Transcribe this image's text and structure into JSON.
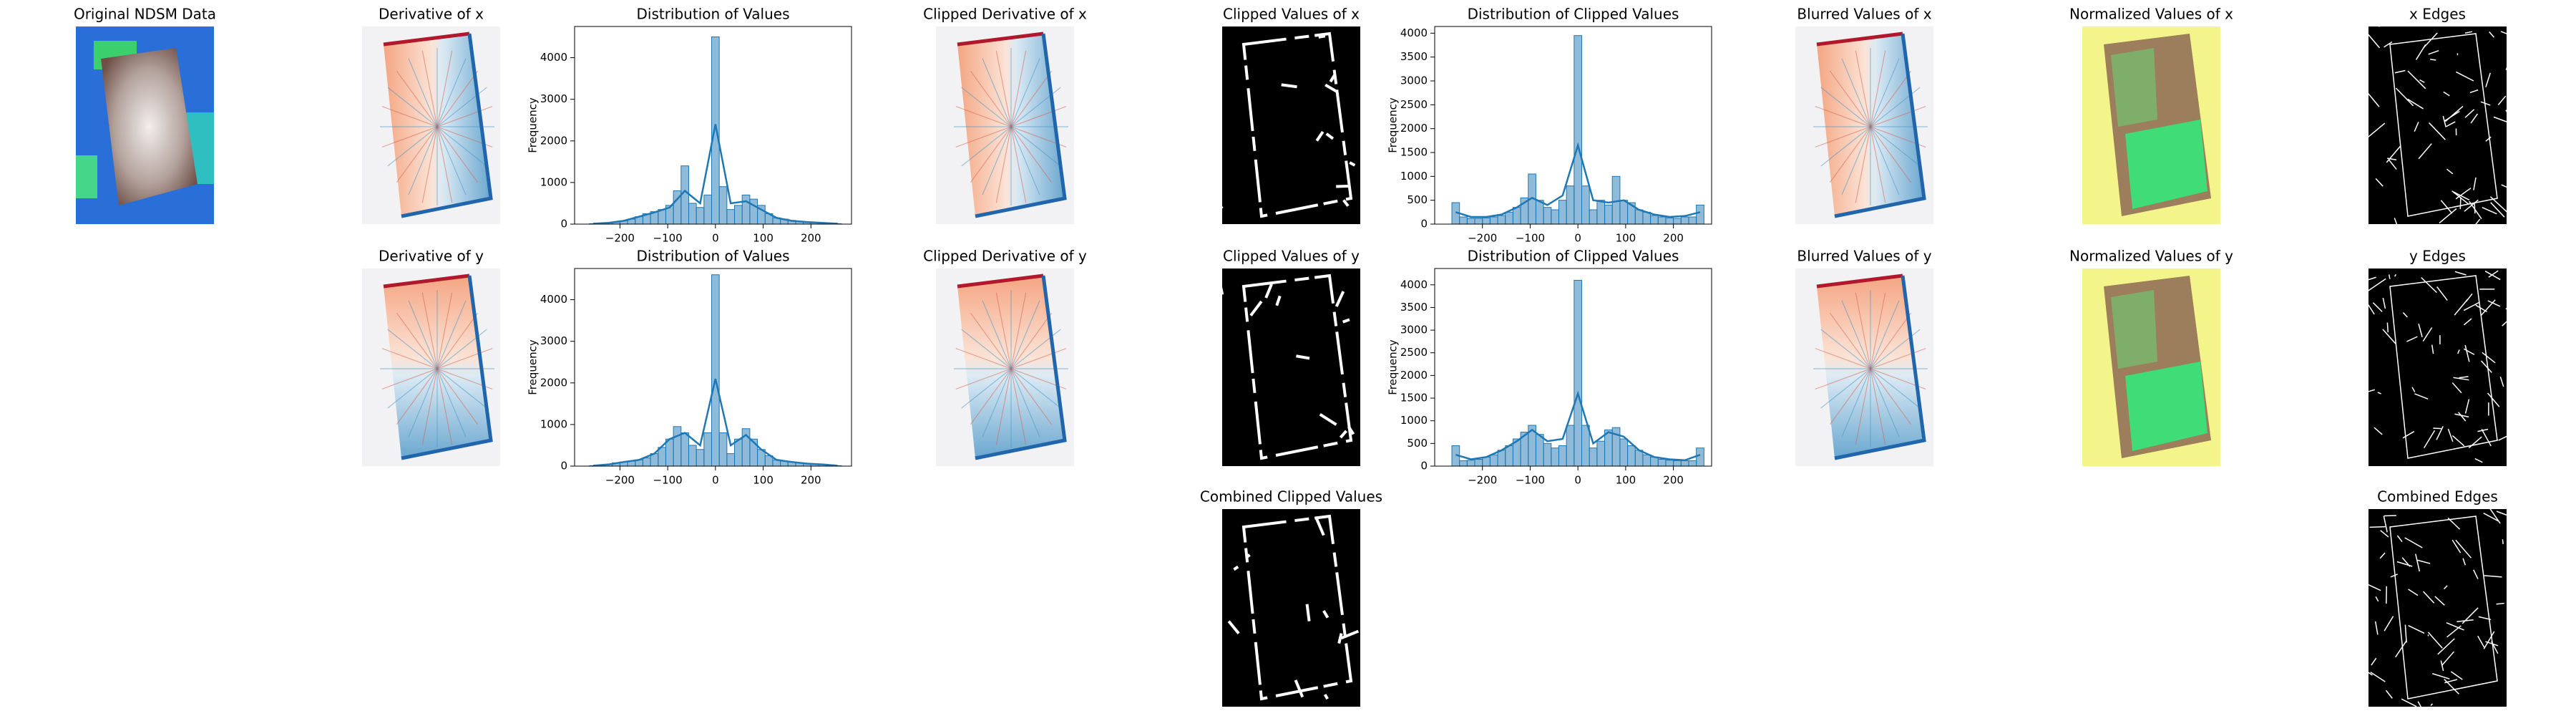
{
  "chart_data": [
    {
      "type": "image",
      "title": "Original NDSM Data"
    },
    {
      "type": "image",
      "title": "Derivative of x"
    },
    {
      "type": "histogram",
      "title": "Distribution of Values",
      "ylabel": "Frequency",
      "color": "#1f77b4",
      "bins": [
        -264,
        -248,
        -232,
        -216,
        -200,
        -184,
        -168,
        -152,
        -136,
        -120,
        -104,
        -88,
        -72,
        -56,
        -40,
        -24,
        -8,
        8,
        24,
        40,
        56,
        72,
        88,
        104,
        120,
        136,
        152,
        168,
        184,
        200,
        216,
        232,
        248,
        264
      ],
      "counts": [
        10,
        20,
        30,
        50,
        80,
        120,
        180,
        250,
        300,
        350,
        450,
        800,
        1400,
        500,
        400,
        700,
        4500,
        900,
        350,
        450,
        700,
        600,
        450,
        250,
        150,
        120,
        90,
        70,
        50,
        40,
        30,
        20,
        10
      ],
      "kde": {
        "x": [
          -256,
          -224,
          -192,
          -160,
          -128,
          -96,
          -64,
          -32,
          0,
          32,
          64,
          96,
          128,
          160,
          192,
          224,
          256
        ],
        "values": [
          10,
          30,
          80,
          180,
          280,
          400,
          800,
          500,
          2400,
          500,
          550,
          350,
          150,
          80,
          50,
          30,
          10
        ]
      },
      "xlim": [
        -295,
        285
      ],
      "ylim": [
        0,
        4750
      ],
      "xticks": [
        {
          "value": -200,
          "label": "−200"
        },
        {
          "value": -100,
          "label": "−100"
        },
        0,
        100,
        200
      ],
      "yticks": [
        0,
        1000,
        2000,
        3000,
        4000
      ]
    },
    {
      "type": "image",
      "title": "Clipped Derivative of x"
    },
    {
      "type": "image",
      "title": "Clipped Values  of x"
    },
    {
      "type": "histogram",
      "title": "Distribution of Clipped Values",
      "ylabel": "Frequency",
      "color": "#1f77b4",
      "bins": [
        -264,
        -248,
        -232,
        -216,
        -200,
        -184,
        -168,
        -152,
        -136,
        -120,
        -104,
        -88,
        -72,
        -56,
        -40,
        -24,
        -8,
        8,
        24,
        40,
        56,
        72,
        88,
        104,
        120,
        136,
        152,
        168,
        184,
        200,
        216,
        232,
        248,
        264
      ],
      "counts": [
        450,
        150,
        120,
        120,
        130,
        150,
        180,
        250,
        350,
        550,
        1050,
        500,
        350,
        300,
        500,
        800,
        3950,
        800,
        300,
        500,
        400,
        1000,
        500,
        450,
        300,
        250,
        180,
        150,
        130,
        120,
        150,
        150,
        400
      ],
      "kde": {
        "x": [
          -256,
          -224,
          -192,
          -160,
          -128,
          -96,
          -64,
          -32,
          0,
          32,
          64,
          96,
          128,
          160,
          192,
          224,
          256
        ],
        "values": [
          250,
          150,
          150,
          200,
          350,
          550,
          400,
          600,
          1650,
          500,
          450,
          500,
          300,
          200,
          150,
          170,
          250
        ]
      },
      "xlim": [
        -300,
        280
      ],
      "ylim": [
        0,
        4140
      ],
      "xticks": [
        {
          "value": -200,
          "label": "−200"
        },
        {
          "value": -100,
          "label": "−100"
        },
        0,
        100,
        200
      ],
      "yticks": [
        0,
        500,
        1000,
        1500,
        2000,
        2500,
        3000,
        3500,
        4000
      ]
    },
    {
      "type": "image",
      "title": "Blurred Values of x"
    },
    {
      "type": "image",
      "title": "Normalized Values of x"
    },
    {
      "type": "image",
      "title": "x Edges"
    },
    {
      "type": "image",
      "title": "Derivative of y"
    },
    {
      "type": "histogram",
      "title": "Distribution of Values",
      "ylabel": "Frequency",
      "color": "#1f77b4",
      "bins": [
        -264,
        -248,
        -232,
        -216,
        -200,
        -184,
        -168,
        -152,
        -136,
        -120,
        -104,
        -88,
        -72,
        -56,
        -40,
        -24,
        -8,
        8,
        24,
        40,
        56,
        72,
        88,
        104,
        120,
        136,
        152,
        168,
        184,
        200,
        216,
        232,
        248,
        264
      ],
      "counts": [
        10,
        20,
        40,
        80,
        100,
        120,
        150,
        200,
        300,
        450,
        650,
        950,
        800,
        500,
        400,
        800,
        4600,
        800,
        300,
        650,
        900,
        650,
        400,
        250,
        150,
        120,
        100,
        80,
        60,
        50,
        40,
        30,
        10
      ],
      "kde": {
        "x": [
          -256,
          -224,
          -192,
          -160,
          -128,
          -96,
          -64,
          -32,
          0,
          32,
          64,
          96,
          128,
          160,
          192,
          224,
          256
        ],
        "values": [
          10,
          40,
          100,
          150,
          300,
          650,
          800,
          500,
          2100,
          500,
          750,
          400,
          150,
          100,
          60,
          40,
          10
        ]
      },
      "xlim": [
        -295,
        285
      ],
      "ylim": [
        0,
        4750
      ],
      "xticks": [
        {
          "value": -200,
          "label": "−200"
        },
        {
          "value": -100,
          "label": "−100"
        },
        0,
        100,
        200
      ],
      "yticks": [
        0,
        1000,
        2000,
        3000,
        4000
      ]
    },
    {
      "type": "image",
      "title": "Clipped Derivative of y"
    },
    {
      "type": "image",
      "title": "Clipped Values  of y"
    },
    {
      "type": "histogram",
      "title": "Distribution of Clipped Values",
      "ylabel": "Frequency",
      "color": "#1f77b4",
      "bins": [
        -264,
        -248,
        -232,
        -216,
        -200,
        -184,
        -168,
        -152,
        -136,
        -120,
        -104,
        -88,
        -72,
        -56,
        -40,
        -24,
        -8,
        8,
        24,
        40,
        56,
        72,
        88,
        104,
        120,
        136,
        152,
        168,
        184,
        200,
        216,
        232,
        248,
        264
      ],
      "counts": [
        450,
        120,
        130,
        150,
        200,
        250,
        350,
        450,
        600,
        750,
        900,
        700,
        500,
        400,
        450,
        900,
        4100,
        900,
        400,
        550,
        800,
        850,
        600,
        450,
        350,
        250,
        200,
        150,
        130,
        120,
        120,
        120,
        400
      ],
      "kde": {
        "x": [
          -256,
          -224,
          -192,
          -160,
          -128,
          -96,
          -64,
          -32,
          0,
          32,
          64,
          96,
          128,
          160,
          192,
          224,
          256
        ],
        "values": [
          250,
          150,
          200,
          350,
          550,
          800,
          550,
          600,
          1600,
          500,
          750,
          650,
          350,
          200,
          150,
          130,
          250
        ]
      },
      "xlim": [
        -300,
        280
      ],
      "ylim": [
        0,
        4360
      ],
      "xticks": [
        {
          "value": -200,
          "label": "−200"
        },
        {
          "value": -100,
          "label": "−100"
        },
        0,
        100,
        200
      ],
      "yticks": [
        0,
        500,
        1000,
        1500,
        2000,
        2500,
        3000,
        3500,
        4000
      ]
    },
    {
      "type": "image",
      "title": "Blurred Values of y"
    },
    {
      "type": "image",
      "title": "Normalized Values of y"
    },
    {
      "type": "image",
      "title": "y Edges"
    },
    {
      "type": "image",
      "title": "Combined Clipped Values"
    },
    {
      "type": "image",
      "title": "Combined Edges"
    }
  ]
}
